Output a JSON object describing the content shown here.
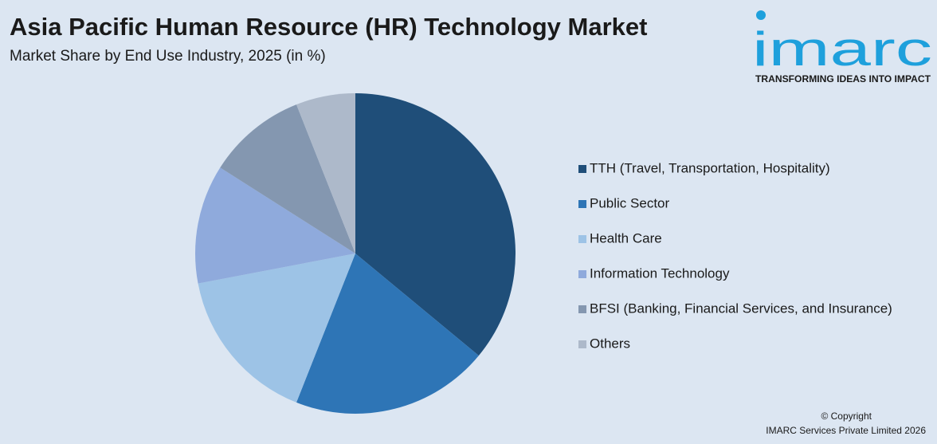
{
  "chart_data": {
    "type": "pie",
    "title": "Asia Pacific Human Resource (HR) Technology Market",
    "subtitle": "Market Share by End Use Industry, 2025 (in %)",
    "categories": [
      "TTH (Travel, Transportation, Hospitality)",
      "Public Sector",
      "Health Care",
      "Information Technology",
      "BFSI (Banking, Financial Services, and Insurance)",
      "Others"
    ],
    "values": [
      36,
      20,
      16,
      12,
      10,
      6
    ],
    "colors": [
      "#1f4e79",
      "#2e75b6",
      "#9dc3e6",
      "#8faadc",
      "#8497b0",
      "#adb9ca"
    ],
    "legend": "right"
  },
  "logo": {
    "name": "imarc",
    "tagline": "TRANSFORMING IDEAS INTO IMPACT"
  },
  "footer": {
    "line1": "© Copyright",
    "line2": "IMARC Services Private Limited 2026"
  }
}
